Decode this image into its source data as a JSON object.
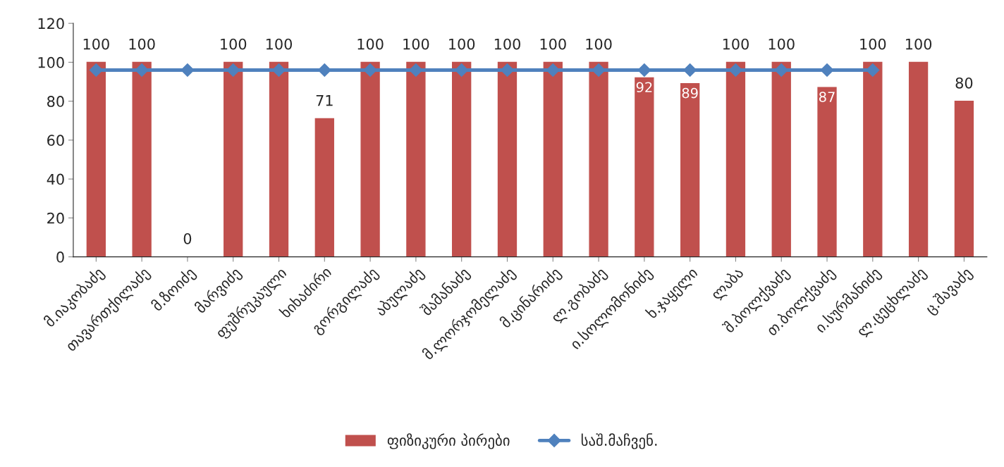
{
  "chart_data": {
    "type": "bar",
    "categories": [
      "მ.იაკობაძე",
      "თავართქილაძე",
      "მ.ზოიძე",
      "მარვიძე",
      "ფუშრუკაული",
      "ხიხაძირი",
      "გორგილაძე",
      "აბულაძე",
      "შამანაძე",
      "მ.ლორჯომელაძე",
      "მ.ცინარიძე",
      "ლ.გობაძე",
      "ი.სოლომონიძე",
      "ხ.ჯაყელი",
      "ლაბა",
      "შ.ბოლქვაძე",
      "თ.ბოლქვაძე",
      "ი.სურმანიძე",
      "ლ.ცეცხლაძე",
      "ც.შავაძე"
    ],
    "series": [
      {
        "name": "ფიზიკური პირები",
        "color": "#c0504d",
        "values": [
          100,
          100,
          0,
          100,
          100,
          71,
          100,
          100,
          100,
          100,
          100,
          100,
          92,
          89,
          100,
          100,
          87,
          100,
          100,
          80
        ],
        "data_labels": true
      },
      {
        "name": "საშ.მაჩვენ.",
        "type": "line",
        "color": "#4f81bd",
        "marker": "diamond",
        "values": [
          96,
          96,
          96,
          96,
          96,
          96,
          96,
          96,
          96,
          96,
          96,
          96,
          96,
          96,
          96,
          96,
          96,
          96,
          null,
          null
        ]
      }
    ],
    "ylim": [
      0,
      120
    ],
    "yticks": [
      0,
      20,
      40,
      60,
      80,
      100,
      120
    ],
    "grid": false,
    "legend": "bottom"
  }
}
